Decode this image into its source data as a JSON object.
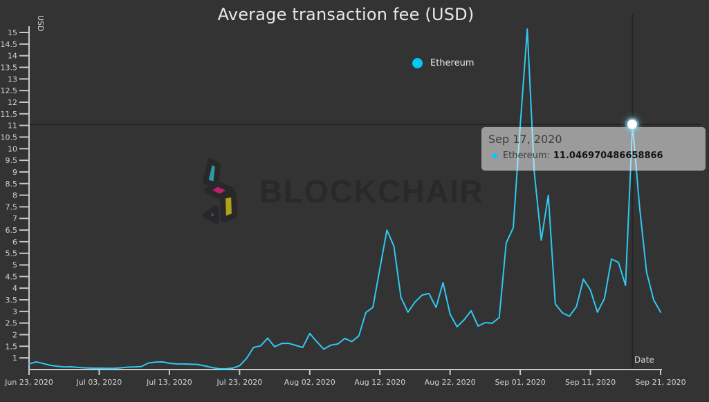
{
  "title": "Average transaction fee (USD)",
  "legend": {
    "label": "Ethereum",
    "dot_color": "#00c9f7"
  },
  "y_axis": {
    "title": "USD",
    "tick_labels_bottom_to_top": [
      "1",
      "1.5",
      "2",
      "2.5",
      "3",
      "3.5",
      "4",
      "4.5",
      "5",
      "5.5",
      "6",
      "6.5",
      "7",
      "7.5",
      "8",
      "8.5",
      "9",
      "9.5",
      "10",
      "10.5",
      "11",
      "11.5",
      "12",
      "12.5",
      "13",
      "13.5",
      "14",
      "14.5",
      "15"
    ]
  },
  "x_axis": {
    "title": "Date",
    "tick_labels": [
      "Jun 23, 2020",
      "Jul 03, 2020",
      "Jul 13, 2020",
      "Jul 23, 2020",
      "Aug 02, 2020",
      "Aug 12, 2020",
      "Aug 22, 2020",
      "Sep 01, 2020",
      "Sep 11, 2020",
      "Sep 21, 2020"
    ]
  },
  "tooltip": {
    "date": "Sep 17, 2020",
    "series_label": "Ethereum:",
    "value": "11.046970486658866"
  },
  "watermark": {
    "text": "BLOCKCHAIR"
  },
  "colors": {
    "background": "#333333",
    "line": "#2fc9f2",
    "legend_dot": "#00c9f7",
    "axis": "#c9c9c9",
    "tick_text": "#d3d3d3",
    "crosshair": "#242424",
    "tooltip_bg": "rgba(252,252,252,0.52)",
    "title_text": "#e8e8e8",
    "watermark_text": "#292929",
    "logo_teal": "#2E98A6",
    "logo_magenta": "#BE1E6E",
    "logo_yellow": "#B2A11B",
    "logo_purple": "#7A3BB0"
  },
  "chart_data": {
    "type": "line",
    "title": "Average transaction fee (USD)",
    "xlabel": "Date",
    "ylabel": "USD",
    "x_start": "Jun 23, 2020",
    "x_end": "Sep 21, 2020",
    "x_interval": "daily",
    "x_tick_labels": [
      "Jun 23, 2020",
      "Jul 03, 2020",
      "Jul 13, 2020",
      "Jul 23, 2020",
      "Aug 02, 2020",
      "Aug 12, 2020",
      "Aug 22, 2020",
      "Sep 01, 2020",
      "Sep 11, 2020",
      "Sep 21, 2020"
    ],
    "ylim": [
      0.5,
      15
    ],
    "grid": false,
    "legend_position": "top-center",
    "series": [
      {
        "name": "Ethereum",
        "color": "#2fc9f2",
        "values": [
          0.74,
          0.83,
          0.76,
          0.68,
          0.64,
          0.61,
          0.62,
          0.59,
          0.57,
          0.56,
          0.56,
          0.55,
          0.55,
          0.57,
          0.6,
          0.61,
          0.63,
          0.78,
          0.82,
          0.83,
          0.77,
          0.74,
          0.74,
          0.73,
          0.72,
          0.66,
          0.59,
          0.54,
          0.53,
          0.56,
          0.66,
          0.98,
          1.45,
          1.52,
          1.85,
          1.48,
          1.62,
          1.63,
          1.54,
          1.45,
          2.05,
          1.7,
          1.38,
          1.55,
          1.6,
          1.84,
          1.7,
          1.95,
          2.95,
          3.17,
          4.85,
          6.5,
          5.8,
          3.6,
          2.97,
          3.4,
          3.7,
          3.77,
          3.17,
          4.24,
          2.88,
          2.34,
          2.64,
          3.03,
          2.37,
          2.52,
          2.49,
          2.73,
          5.94,
          6.6,
          11.0,
          15.15,
          9.0,
          6.06,
          8.0,
          3.32,
          2.94,
          2.79,
          3.2,
          4.39,
          3.92,
          2.97,
          3.55,
          5.25,
          5.11,
          4.12,
          11.046970486658866,
          7.5,
          4.7,
          3.5,
          2.97
        ]
      }
    ],
    "highlight": {
      "index": 86,
      "date": "Sep 17, 2020",
      "series": "Ethereum",
      "value": 11.046970486658866
    }
  }
}
